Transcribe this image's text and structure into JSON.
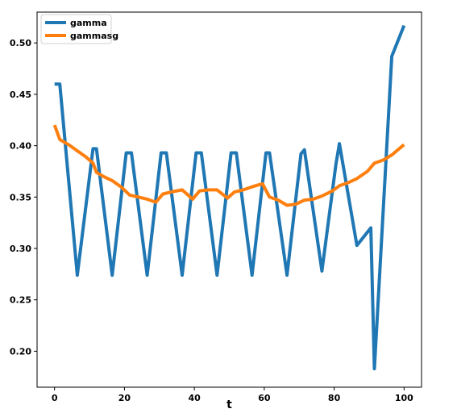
{
  "chart_data": {
    "type": "line",
    "xlabel": "t",
    "ylabel": "",
    "xlim": [
      -5,
      105
    ],
    "ylim": [
      0.165,
      0.53
    ],
    "xticks": [
      0,
      20,
      40,
      60,
      80,
      100
    ],
    "yticks": [
      0.2,
      0.25,
      0.3,
      0.35,
      0.4,
      0.45,
      0.5
    ],
    "ytick_labels": [
      "0.20",
      "0.25",
      "0.30",
      "0.35",
      "0.40",
      "0.45",
      "0.50"
    ],
    "xtick_labels": [
      "0",
      "20",
      "40",
      "60",
      "80",
      "100"
    ],
    "legend_position": "top-left",
    "grid": false,
    "series": [
      {
        "name": "gamma",
        "color": "#1f77b4",
        "points": [
          [
            0,
            0.46
          ],
          [
            1.5,
            0.46
          ],
          [
            6.5,
            0.274
          ],
          [
            11,
            0.397
          ],
          [
            12,
            0.397
          ],
          [
            16.5,
            0.274
          ],
          [
            20.5,
            0.393
          ],
          [
            22,
            0.393
          ],
          [
            26.5,
            0.274
          ],
          [
            30.5,
            0.393
          ],
          [
            32,
            0.393
          ],
          [
            36.5,
            0.274
          ],
          [
            40.5,
            0.393
          ],
          [
            42,
            0.393
          ],
          [
            46.5,
            0.274
          ],
          [
            50.5,
            0.393
          ],
          [
            52,
            0.393
          ],
          [
            56.5,
            0.274
          ],
          [
            60.5,
            0.393
          ],
          [
            61.5,
            0.393
          ],
          [
            66.5,
            0.274
          ],
          [
            70.5,
            0.392
          ],
          [
            71.5,
            0.396
          ],
          [
            76.5,
            0.278
          ],
          [
            80.5,
            0.382
          ],
          [
            81.5,
            0.402
          ],
          [
            86.5,
            0.303
          ],
          [
            90.5,
            0.32
          ],
          [
            91.5,
            0.183
          ],
          [
            96.5,
            0.487
          ],
          [
            100,
            0.517
          ]
        ]
      },
      {
        "name": "gammasg",
        "color": "#ff7f0e",
        "points": [
          [
            0,
            0.42
          ],
          [
            1.5,
            0.406
          ],
          [
            4,
            0.401
          ],
          [
            6.5,
            0.395
          ],
          [
            9,
            0.389
          ],
          [
            11,
            0.383
          ],
          [
            12,
            0.374
          ],
          [
            14,
            0.37
          ],
          [
            16.5,
            0.366
          ],
          [
            19,
            0.36
          ],
          [
            21.5,
            0.352
          ],
          [
            24,
            0.35
          ],
          [
            26.5,
            0.348
          ],
          [
            29,
            0.345
          ],
          [
            31,
            0.353
          ],
          [
            33.5,
            0.355
          ],
          [
            36.5,
            0.357
          ],
          [
            39.5,
            0.348
          ],
          [
            41.5,
            0.356
          ],
          [
            44,
            0.357
          ],
          [
            46.5,
            0.357
          ],
          [
            49.5,
            0.349
          ],
          [
            51.5,
            0.355
          ],
          [
            54,
            0.357
          ],
          [
            56.5,
            0.36
          ],
          [
            59.5,
            0.363
          ],
          [
            61.5,
            0.35
          ],
          [
            64,
            0.347
          ],
          [
            66.5,
            0.342
          ],
          [
            69,
            0.343
          ],
          [
            71.5,
            0.347
          ],
          [
            74,
            0.348
          ],
          [
            76.5,
            0.351
          ],
          [
            79.5,
            0.356
          ],
          [
            81.5,
            0.361
          ],
          [
            84,
            0.364
          ],
          [
            86.5,
            0.368
          ],
          [
            89.5,
            0.375
          ],
          [
            91.5,
            0.383
          ],
          [
            94,
            0.386
          ],
          [
            96.5,
            0.391
          ],
          [
            100,
            0.401
          ]
        ]
      }
    ]
  }
}
